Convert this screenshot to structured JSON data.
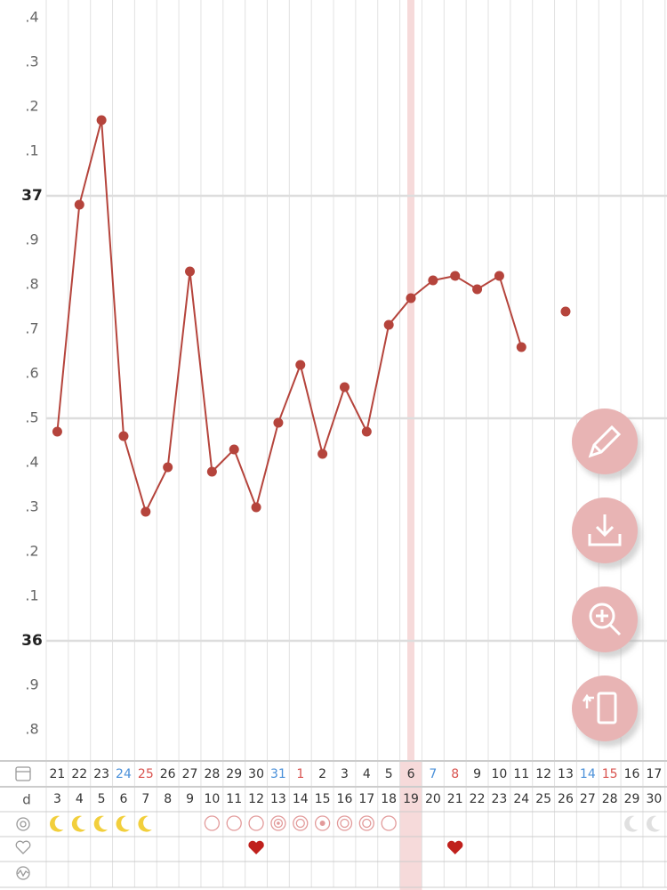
{
  "chart_data": {
    "type": "line",
    "categories": [
      "21",
      "22",
      "23",
      "24",
      "25",
      "26",
      "27",
      "28",
      "29",
      "30",
      "31",
      "1",
      "2",
      "3",
      "4",
      "5",
      "6",
      "7",
      "8",
      "9",
      "10",
      "11",
      "12",
      "13",
      "14",
      "15",
      "16",
      "17"
    ],
    "category_colors": [
      "#333",
      "#333",
      "#333",
      "#4a90d9",
      "#d9534f",
      "#333",
      "#333",
      "#333",
      "#333",
      "#333",
      "#4a90d9",
      "#d9534f",
      "#333",
      "#333",
      "#333",
      "#333",
      "#333",
      "#4a90d9",
      "#d9534f",
      "#333",
      "#333",
      "#333",
      "#333",
      "#333",
      "#4a90d9",
      "#d9534f",
      "#333",
      "#333"
    ],
    "cycle_days": [
      3,
      4,
      5,
      6,
      7,
      8,
      9,
      10,
      11,
      12,
      13,
      14,
      15,
      16,
      17,
      18,
      19,
      20,
      21,
      22,
      23,
      24,
      25,
      26,
      27,
      28,
      29,
      30
    ],
    "cycle_day_label": "d",
    "series": [
      {
        "color": "#b5443c",
        "values": [
          36.47,
          36.98,
          37.17,
          36.46,
          36.29,
          36.39,
          36.83,
          36.38,
          36.43,
          36.3,
          36.49,
          36.62,
          36.42,
          36.57,
          36.47,
          36.71,
          36.77,
          36.81,
          36.82,
          36.79,
          36.82,
          36.66,
          null,
          36.74,
          null,
          null,
          null,
          null
        ]
      }
    ],
    "ylim": [
      35.73,
      37.44
    ],
    "yticks": [
      {
        "value": 35.8,
        "label": ".8"
      },
      {
        "value": 35.9,
        "label": ".9"
      },
      36,
      {
        "value": 36.1,
        "label": ".1"
      },
      {
        "value": 36.2,
        "label": ".2"
      },
      {
        "value": 36.3,
        "label": ".3"
      },
      {
        "value": 36.4,
        "label": ".4"
      },
      {
        "value": 36.5,
        "label": ".5"
      },
      {
        "value": 36.6,
        "label": ".6"
      },
      {
        "value": 36.7,
        "label": ".7"
      },
      {
        "value": 36.8,
        "label": ".8"
      },
      {
        "value": 36.9,
        "label": ".9"
      },
      37,
      {
        "value": 37.1,
        "label": ".1"
      },
      {
        "value": 37.2,
        "label": ".2"
      },
      {
        "value": 37.3,
        "label": ".3"
      },
      {
        "value": 37.4,
        "label": ".4"
      }
    ],
    "grid": true,
    "highlight_index": 16
  }
}
